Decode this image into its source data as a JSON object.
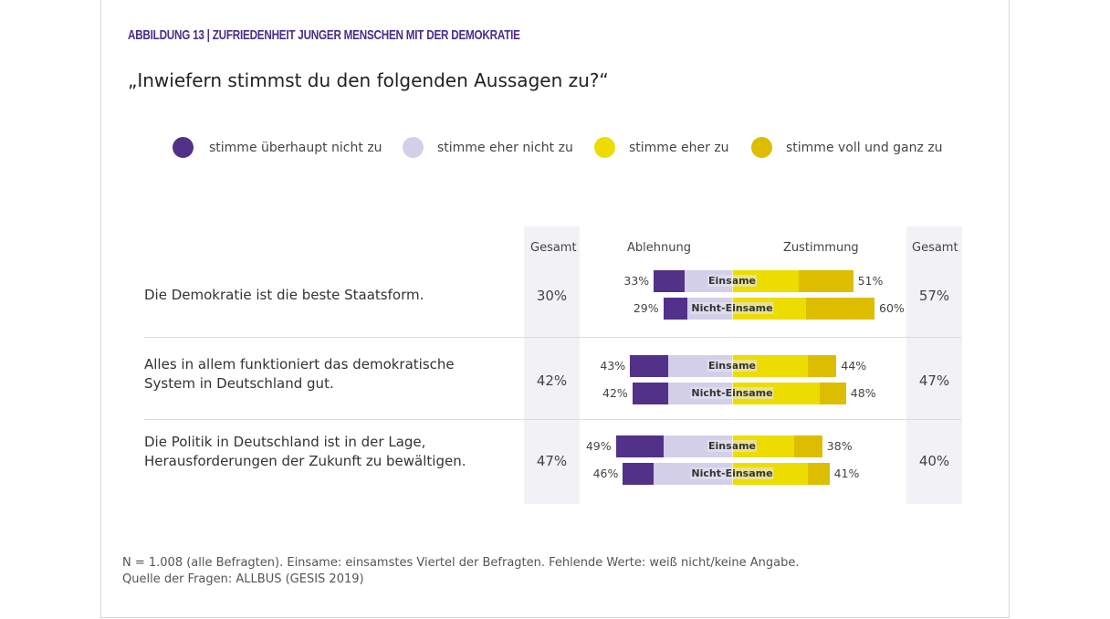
{
  "figure_label": "ABBILDUNG 13 | ZUFRIEDENHEIT JUNGER MENSCHEN MIT DER DEMOKRATIE",
  "chart_data": {
    "type": "bar",
    "subtype": "diverging-stacked-horizontal",
    "title": "„Inwiefern stimmst du den folgenden Aussagen zu?“",
    "legend_position": "top",
    "legend": [
      {
        "name": "stimme überhaupt nicht zu",
        "color": "#523189"
      },
      {
        "name": "stimme eher nicht zu",
        "color": "#d4cfe9"
      },
      {
        "name": "stimme eher zu",
        "color": "#ecdc00"
      },
      {
        "name": "stimme voll und ganz zu",
        "color": "#ddbd00"
      }
    ],
    "headers": {
      "gesamt_left": "Gesamt",
      "ablehnung": "Ablehnung",
      "zustimmung": "Zustimmung",
      "gesamt_right": "Gesamt"
    },
    "items": [
      {
        "statement": "Die Demokratie ist die beste Staatsform.",
        "gesamt_ablehnung": "30%",
        "gesamt_zustimmung": "57%",
        "bars": [
          {
            "group": "Einsame",
            "ablehnung_label": "33%",
            "zustimmung_label": "51%",
            "values": [
              13,
              20,
              28,
              23
            ]
          },
          {
            "group": "Nicht-Einsame",
            "ablehnung_label": "29%",
            "zustimmung_label": "60%",
            "values": [
              10,
              19,
              31,
              29
            ]
          }
        ]
      },
      {
        "statement": "Alles in allem funktioniert das demokratische System in Deutschland gut.",
        "gesamt_ablehnung": "42%",
        "gesamt_zustimmung": "47%",
        "bars": [
          {
            "group": "Einsame",
            "ablehnung_label": "43%",
            "zustimmung_label": "44%",
            "values": [
              16,
              27,
              32,
              12
            ]
          },
          {
            "group": "Nicht-Einsame",
            "ablehnung_label": "42%",
            "zustimmung_label": "48%",
            "values": [
              15,
              27,
              37,
              11
            ]
          }
        ]
      },
      {
        "statement": "Die Politik in Deutschland ist in der Lage, Herausforderungen der Zukunft zu bewältigen.",
        "gesamt_ablehnung": "47%",
        "gesamt_zustimmung": "40%",
        "bars": [
          {
            "group": "Einsame",
            "ablehnung_label": "49%",
            "zustimmung_label": "38%",
            "values": [
              20,
              29,
              26,
              12
            ]
          },
          {
            "group": "Nicht-Einsame",
            "ablehnung_label": "46%",
            "zustimmung_label": "41%",
            "values": [
              13,
              33,
              32,
              9
            ]
          }
        ]
      }
    ]
  },
  "footnote": [
    "N = 1.008 (alle Befragten). Einsame: einsamstes Viertel der Befragten. Fehlende Werte: weiß nicht/keine Angabe.",
    "Quelle der Fragen: ALLBUS (GESIS 2019)"
  ]
}
